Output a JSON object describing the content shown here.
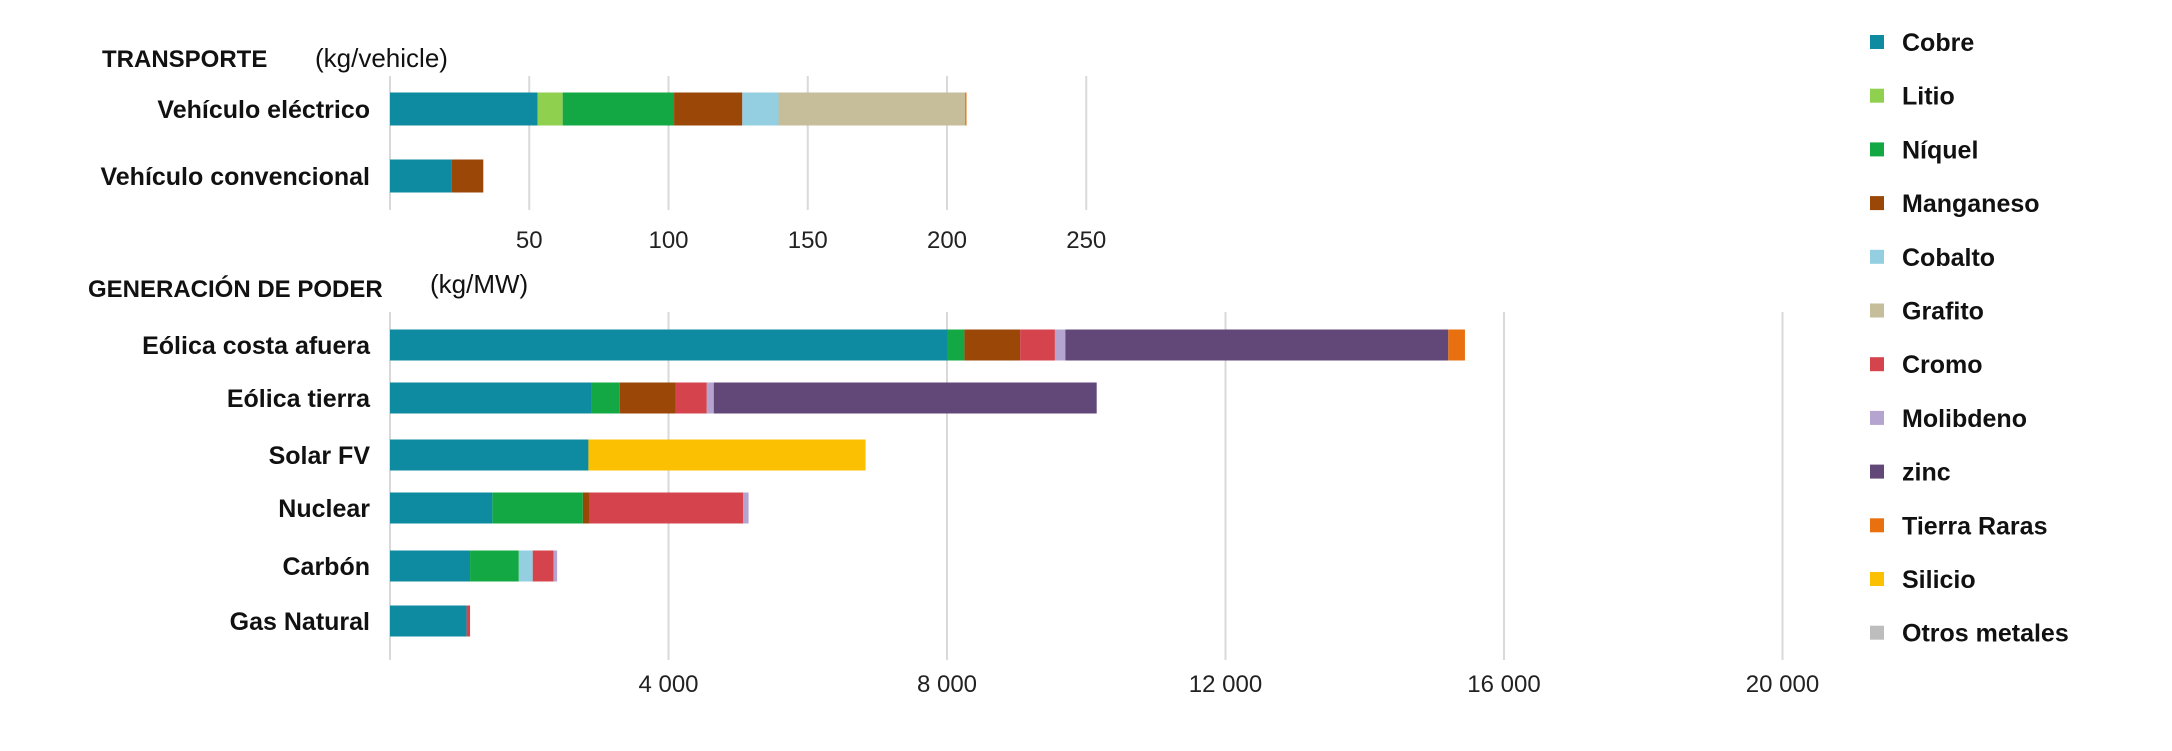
{
  "chart_data": [
    {
      "type": "bar",
      "orientation": "horizontal",
      "stacked": true,
      "section_title": "TRANSPORTE",
      "unit": "(kg/vehicle)",
      "categories": [
        "Vehículo eléctrico",
        "Vehículo convencional"
      ],
      "x_ticks": [
        "50",
        "100",
        "150",
        "200",
        "250"
      ],
      "x_tick_values": [
        50,
        100,
        150,
        200,
        250
      ],
      "xlim": [
        0,
        260
      ],
      "grid": true,
      "series": [
        {
          "name": "Cobre",
          "values": [
            53,
            22
          ]
        },
        {
          "name": "Litio",
          "values": [
            9,
            0
          ]
        },
        {
          "name": "Níquel",
          "values": [
            40,
            0
          ]
        },
        {
          "name": "Manganeso",
          "values": [
            24.5,
            11.5
          ]
        },
        {
          "name": "Cobalto",
          "values": [
            13,
            0
          ]
        },
        {
          "name": "Grafito",
          "values": [
            67,
            0
          ]
        },
        {
          "name": "Tierra Raras",
          "values": [
            0.5,
            0
          ]
        }
      ]
    },
    {
      "type": "bar",
      "orientation": "horizontal",
      "stacked": true,
      "section_title": "GENERACIÓN DE PODER",
      "unit": "(kg/MW)",
      "categories": [
        "Eólica costa afuera",
        "Eólica tierra",
        "Solar FV",
        "Nuclear",
        "Carbón",
        "Gas Natural"
      ],
      "x_ticks": [
        "4 000",
        "8 000",
        "12 000",
        "16 000",
        "20 000"
      ],
      "x_tick_values": [
        4000,
        8000,
        12000,
        16000,
        20000
      ],
      "xlim": [
        0,
        21000
      ],
      "grid": true,
      "series": [
        {
          "name": "Cobre",
          "values": [
            8000,
            2900,
            2850,
            1470,
            1150,
            1100
          ]
        },
        {
          "name": "Níquel",
          "values": [
            250,
            400,
            0,
            1300,
            700,
            0
          ]
        },
        {
          "name": "Manganeso",
          "values": [
            800,
            800,
            0,
            100,
            0,
            0
          ]
        },
        {
          "name": "Cobalto",
          "values": [
            0,
            0,
            0,
            0,
            200,
            0
          ]
        },
        {
          "name": "Cromo",
          "values": [
            500,
            450,
            0,
            2200,
            300,
            50
          ]
        },
        {
          "name": "Molibdeno",
          "values": [
            150,
            100,
            0,
            80,
            50,
            0
          ]
        },
        {
          "name": "zinc",
          "values": [
            5500,
            5500,
            0,
            0,
            0,
            0
          ]
        },
        {
          "name": "Tierra Raras",
          "values": [
            239,
            0,
            0,
            0,
            0,
            0
          ]
        },
        {
          "name": "Silicio",
          "values": [
            0,
            0,
            3980,
            0,
            0,
            0
          ]
        }
      ]
    }
  ],
  "legend": {
    "position": "right",
    "items": [
      {
        "name": "Cobre",
        "color": "#0e8ba0"
      },
      {
        "name": "Litio",
        "color": "#8fd14f"
      },
      {
        "name": "Níquel",
        "color": "#14a845"
      },
      {
        "name": "Manganeso",
        "color": "#9a4708"
      },
      {
        "name": "Cobalto",
        "color": "#93cfe0"
      },
      {
        "name": "Grafito",
        "color": "#c6be9a"
      },
      {
        "name": "Cromo",
        "color": "#d5444d"
      },
      {
        "name": "Molibdeno",
        "color": "#b5a4cf"
      },
      {
        "name": "zinc",
        "color": "#614878"
      },
      {
        "name": "Tierra Raras",
        "color": "#e8700f"
      },
      {
        "name": "Silicio",
        "color": "#fcc003"
      },
      {
        "name": "Otros metales",
        "color": "#bdbdbd"
      }
    ]
  }
}
